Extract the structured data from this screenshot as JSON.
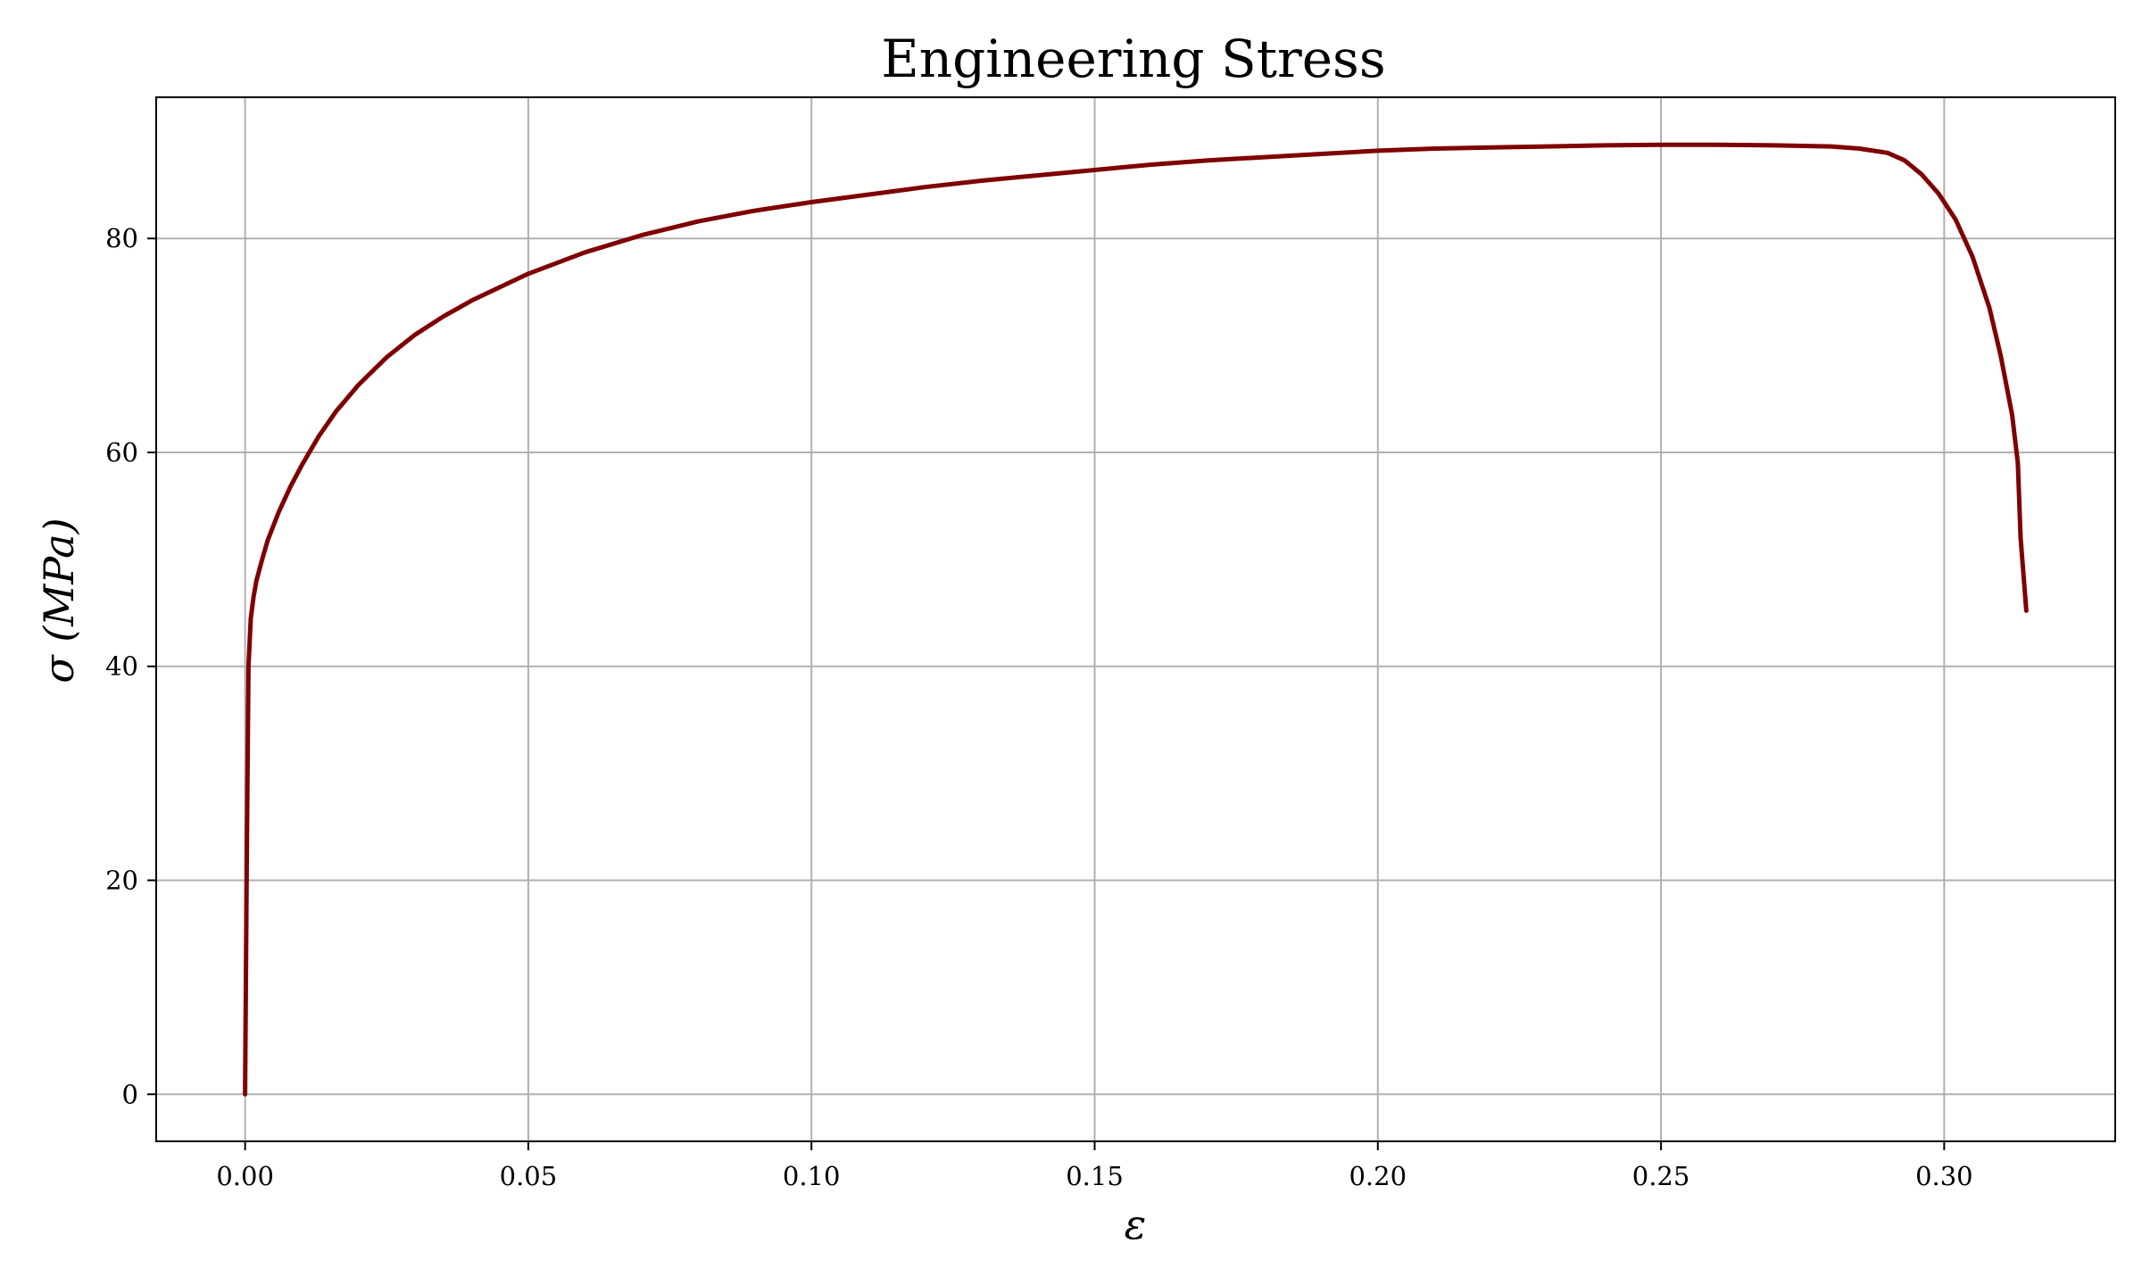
{
  "chart_data": {
    "type": "line",
    "title": "Engineering Stress",
    "xlabel": "ε",
    "ylabel": "σ (MPa)",
    "xlim": [
      -0.0157,
      0.3302
    ],
    "ylim": [
      -4.4,
      93.2
    ],
    "xticks": [
      0.0,
      0.05,
      0.1,
      0.15,
      0.2,
      0.25,
      0.3
    ],
    "xtick_labels": [
      "0.00",
      "0.05",
      "0.10",
      "0.15",
      "0.20",
      "0.25",
      "0.30"
    ],
    "yticks": [
      0,
      20,
      40,
      60,
      80
    ],
    "ytick_labels": [
      "0",
      "20",
      "40",
      "60",
      "80"
    ],
    "grid": true,
    "series": [
      {
        "color": "#7f0000",
        "x": [
          0.0,
          0.0003,
          0.0006,
          0.001,
          0.0015,
          0.002,
          0.003,
          0.004,
          0.006,
          0.008,
          0.01,
          0.013,
          0.016,
          0.02,
          0.025,
          0.03,
          0.035,
          0.04,
          0.05,
          0.06,
          0.07,
          0.08,
          0.09,
          0.1,
          0.11,
          0.12,
          0.13,
          0.14,
          0.15,
          0.16,
          0.17,
          0.18,
          0.19,
          0.2,
          0.21,
          0.22,
          0.23,
          0.24,
          0.25,
          0.26,
          0.27,
          0.28,
          0.285,
          0.29,
          0.293,
          0.296,
          0.299,
          0.302,
          0.305,
          0.308,
          0.31,
          0.312,
          0.313,
          0.3135,
          0.3145
        ],
        "y": [
          0.0,
          22.0,
          40.0,
          44.5,
          46.5,
          48.0,
          50.0,
          51.8,
          54.5,
          56.8,
          58.8,
          61.5,
          63.8,
          66.3,
          68.9,
          71.0,
          72.7,
          74.2,
          76.7,
          78.7,
          80.3,
          81.6,
          82.6,
          83.4,
          84.1,
          84.8,
          85.4,
          85.9,
          86.4,
          86.9,
          87.3,
          87.6,
          87.9,
          88.2,
          88.4,
          88.5,
          88.6,
          88.7,
          88.75,
          88.75,
          88.7,
          88.6,
          88.4,
          88.0,
          87.3,
          86.0,
          84.2,
          81.8,
          78.3,
          73.5,
          69.0,
          63.5,
          59.0,
          52.0,
          45.2
        ]
      }
    ]
  }
}
